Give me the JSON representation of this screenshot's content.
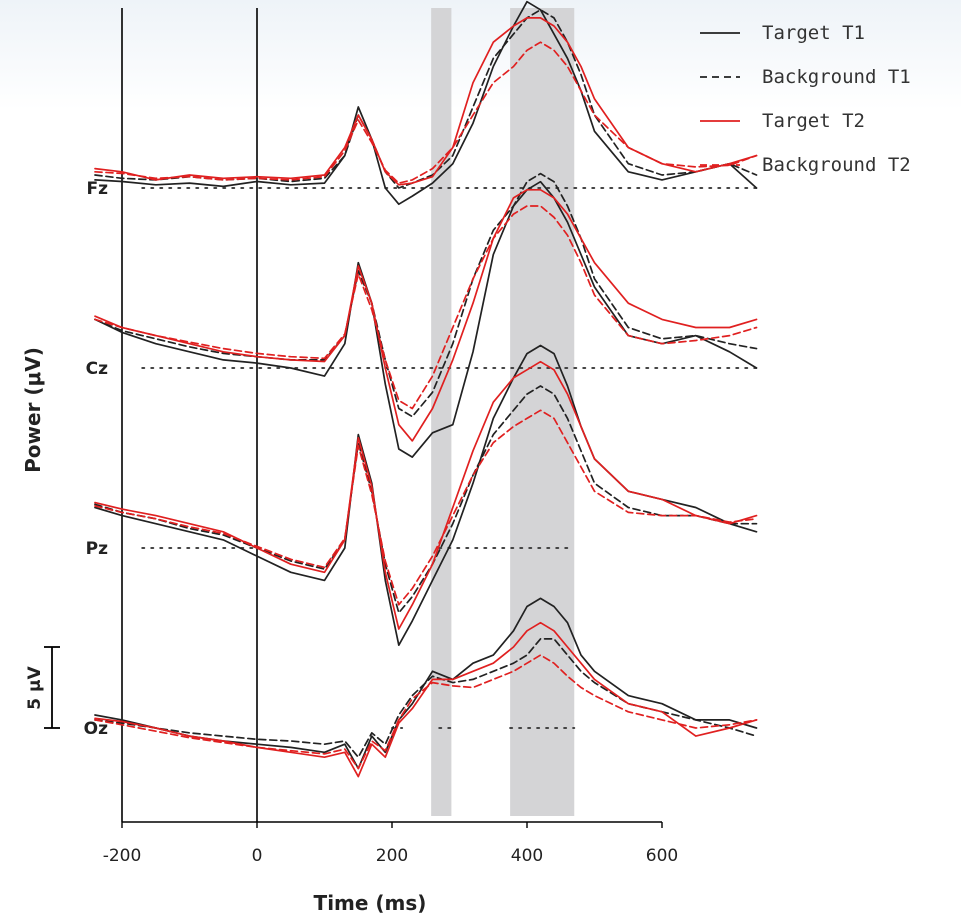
{
  "chart_data": {
    "type": "line",
    "xlabel": "Time (ms)",
    "ylabel": "Power (μV)",
    "xlim": [
      -245,
      745
    ],
    "x_ticks": [
      "-200",
      "0",
      "200",
      "400",
      "600"
    ],
    "x_tick_values": [
      -200,
      0,
      200,
      400,
      600
    ],
    "scale_bar_label": "5 μV",
    "scale_bar_uv": 5,
    "shaded_windows_ms": [
      [
        258,
        288
      ],
      [
        375,
        470
      ]
    ],
    "legend_position": "top-right",
    "legend": [
      {
        "label": "Target T1",
        "color": "#222222",
        "dashed": false
      },
      {
        "label": "Background T1",
        "color": "#222222",
        "dashed": true
      },
      {
        "label": "Target T2",
        "color": "#e02020",
        "dashed": false
      },
      {
        "label": "Background T2",
        "color": "#e02020",
        "dashed": true
      }
    ],
    "time_ms": [
      -240,
      -200,
      -150,
      -100,
      -50,
      0,
      50,
      100,
      130,
      150,
      170,
      190,
      210,
      230,
      260,
      290,
      320,
      350,
      380,
      400,
      420,
      440,
      460,
      480,
      500,
      550,
      600,
      650,
      700,
      740
    ],
    "channels": [
      {
        "name": "Fz",
        "series": [
          {
            "name": "Target T1",
            "values": [
              0.5,
              0.4,
              0.2,
              0.3,
              0.1,
              0.4,
              0.2,
              0.3,
              2.0,
              5.0,
              3.0,
              0.0,
              -1.0,
              -0.5,
              0.3,
              1.5,
              4.0,
              7.5,
              10.0,
              11.5,
              11.0,
              9.5,
              8.0,
              6.0,
              3.5,
              1.0,
              0.5,
              1.0,
              1.5,
              0.0
            ]
          },
          {
            "name": "Background T1",
            "values": [
              0.8,
              0.6,
              0.5,
              0.7,
              0.5,
              0.6,
              0.4,
              0.6,
              2.0,
              4.5,
              3.0,
              1.0,
              0.0,
              0.3,
              0.8,
              2.0,
              5.0,
              8.0,
              9.5,
              10.5,
              11.0,
              10.5,
              9.0,
              7.0,
              4.5,
              1.5,
              0.8,
              1.0,
              1.5,
              0.8
            ]
          },
          {
            "name": "Target T2",
            "values": [
              1.2,
              1.0,
              0.5,
              0.8,
              0.6,
              0.7,
              0.6,
              0.8,
              2.5,
              4.5,
              3.0,
              1.0,
              0.2,
              0.3,
              0.7,
              2.5,
              6.5,
              9.0,
              10.0,
              10.5,
              10.5,
              10.0,
              9.0,
              7.5,
              5.5,
              2.5,
              1.5,
              1.0,
              1.5,
              2.0
            ]
          },
          {
            "name": "Background T2",
            "values": [
              1.0,
              0.9,
              0.6,
              0.7,
              0.5,
              0.6,
              0.5,
              0.7,
              2.3,
              4.2,
              2.8,
              1.1,
              0.3,
              0.5,
              1.2,
              2.5,
              4.5,
              6.5,
              7.5,
              8.5,
              9.0,
              8.5,
              7.5,
              6.0,
              4.5,
              2.5,
              1.5,
              1.3,
              1.4,
              2.0
            ]
          }
        ]
      },
      {
        "name": "Cz",
        "series": [
          {
            "name": "Target T1",
            "values": [
              3.0,
              2.2,
              1.5,
              1.0,
              0.5,
              0.3,
              0.0,
              -0.5,
              1.5,
              6.5,
              4.0,
              -1.0,
              -5.0,
              -5.5,
              -4.0,
              -3.5,
              1.0,
              7.0,
              10.0,
              11.0,
              11.5,
              10.5,
              9.0,
              7.0,
              5.0,
              2.0,
              1.5,
              2.0,
              1.0,
              0.0
            ]
          },
          {
            "name": "Background T1",
            "values": [
              3.0,
              2.3,
              1.8,
              1.3,
              0.9,
              0.7,
              0.5,
              0.5,
              2.0,
              6.0,
              4.0,
              0.5,
              -2.5,
              -3.0,
              -1.5,
              1.5,
              5.5,
              8.5,
              10.0,
              11.5,
              12.0,
              11.5,
              10.0,
              8.0,
              5.5,
              2.5,
              1.8,
              2.0,
              1.5,
              1.2
            ]
          },
          {
            "name": "Target T2",
            "values": [
              3.2,
              2.5,
              2.0,
              1.5,
              1.0,
              0.7,
              0.5,
              0.4,
              2.0,
              6.3,
              4.0,
              0.0,
              -3.5,
              -4.5,
              -2.5,
              0.5,
              4.0,
              8.0,
              10.5,
              11.0,
              11.0,
              10.5,
              9.5,
              8.0,
              6.5,
              4.0,
              3.0,
              2.5,
              2.5,
              3.0
            ]
          },
          {
            "name": "Background T2",
            "values": [
              3.0,
              2.5,
              2.0,
              1.6,
              1.2,
              0.9,
              0.7,
              0.6,
              2.1,
              5.8,
              3.6,
              0.5,
              -2.0,
              -2.5,
              -0.5,
              2.5,
              5.5,
              8.0,
              9.5,
              10.0,
              10.0,
              9.3,
              8.2,
              6.5,
              4.5,
              2.0,
              1.5,
              1.7,
              2.0,
              2.5
            ]
          }
        ]
      },
      {
        "name": "Pz",
        "series": [
          {
            "name": "Target T1",
            "values": [
              2.5,
              2.0,
              1.5,
              1.0,
              0.5,
              -0.5,
              -1.5,
              -2.0,
              0.0,
              7.0,
              4.0,
              -2.0,
              -6.0,
              -4.5,
              -2.0,
              0.5,
              4.0,
              8.0,
              10.5,
              12.0,
              12.5,
              12.0,
              10.0,
              7.5,
              5.5,
              3.5,
              3.0,
              2.5,
              1.5,
              1.0
            ]
          },
          {
            "name": "Background T1",
            "values": [
              2.7,
              2.2,
              1.8,
              1.2,
              0.8,
              0.0,
              -0.8,
              -1.3,
              0.5,
              6.5,
              3.5,
              -1.0,
              -4.0,
              -3.0,
              -1.0,
              1.5,
              4.5,
              7.0,
              8.5,
              9.5,
              10.0,
              9.5,
              8.0,
              6.0,
              4.0,
              2.5,
              2.0,
              2.0,
              1.5,
              1.5
            ]
          },
          {
            "name": "Target T2",
            "values": [
              2.8,
              2.4,
              2.0,
              1.5,
              1.0,
              0.0,
              -1.0,
              -1.5,
              0.5,
              6.8,
              3.8,
              -1.5,
              -5.0,
              -3.5,
              -1.0,
              2.5,
              6.0,
              9.0,
              10.5,
              11.0,
              11.5,
              11.0,
              9.5,
              7.5,
              5.5,
              3.5,
              3.0,
              2.0,
              1.5,
              2.0
            ]
          },
          {
            "name": "Background T2",
            "values": [
              2.6,
              2.2,
              1.8,
              1.3,
              0.9,
              0.1,
              -0.7,
              -1.2,
              0.6,
              6.3,
              3.3,
              -0.8,
              -3.5,
              -2.5,
              -0.5,
              2.0,
              4.5,
              6.5,
              7.5,
              8.0,
              8.5,
              8.0,
              6.5,
              5.0,
              3.5,
              2.2,
              2.0,
              2.0,
              1.6,
              1.8
            ]
          }
        ]
      },
      {
        "name": "Oz",
        "series": [
          {
            "name": "Target T1",
            "values": [
              0.8,
              0.5,
              0.0,
              -0.5,
              -0.8,
              -1.0,
              -1.2,
              -1.5,
              -1.0,
              -2.5,
              -0.5,
              -1.5,
              0.5,
              1.5,
              3.5,
              3.0,
              4.0,
              4.5,
              6.0,
              7.5,
              8.0,
              7.5,
              6.5,
              4.5,
              3.5,
              2.0,
              1.5,
              0.5,
              0.5,
              0.0
            ]
          },
          {
            "name": "Background T1",
            "values": [
              0.5,
              0.3,
              0.0,
              -0.3,
              -0.5,
              -0.7,
              -0.8,
              -1.0,
              -0.8,
              -1.8,
              -0.3,
              -1.0,
              0.8,
              2.0,
              3.2,
              2.8,
              3.0,
              3.5,
              4.0,
              4.5,
              5.5,
              5.5,
              4.5,
              3.5,
              2.8,
              1.5,
              1.0,
              0.5,
              0.0,
              -0.5
            ]
          },
          {
            "name": "Target T2",
            "values": [
              0.6,
              0.4,
              0.0,
              -0.5,
              -0.8,
              -1.2,
              -1.5,
              -1.8,
              -1.5,
              -3.0,
              -1.0,
              -1.8,
              0.3,
              1.2,
              3.0,
              3.0,
              3.5,
              4.0,
              5.0,
              6.0,
              6.5,
              6.0,
              5.0,
              4.0,
              3.0,
              1.5,
              1.0,
              -0.5,
              0.0,
              0.5
            ]
          },
          {
            "name": "Background T2",
            "values": [
              0.5,
              0.2,
              -0.2,
              -0.6,
              -0.9,
              -1.2,
              -1.4,
              -1.6,
              -1.3,
              -2.5,
              -0.8,
              -1.4,
              0.5,
              1.8,
              2.8,
              2.6,
              2.5,
              3.0,
              3.5,
              4.0,
              4.5,
              4.0,
              3.2,
              2.5,
              2.0,
              1.0,
              0.5,
              0.0,
              0.2,
              0.5
            ]
          }
        ]
      }
    ]
  }
}
